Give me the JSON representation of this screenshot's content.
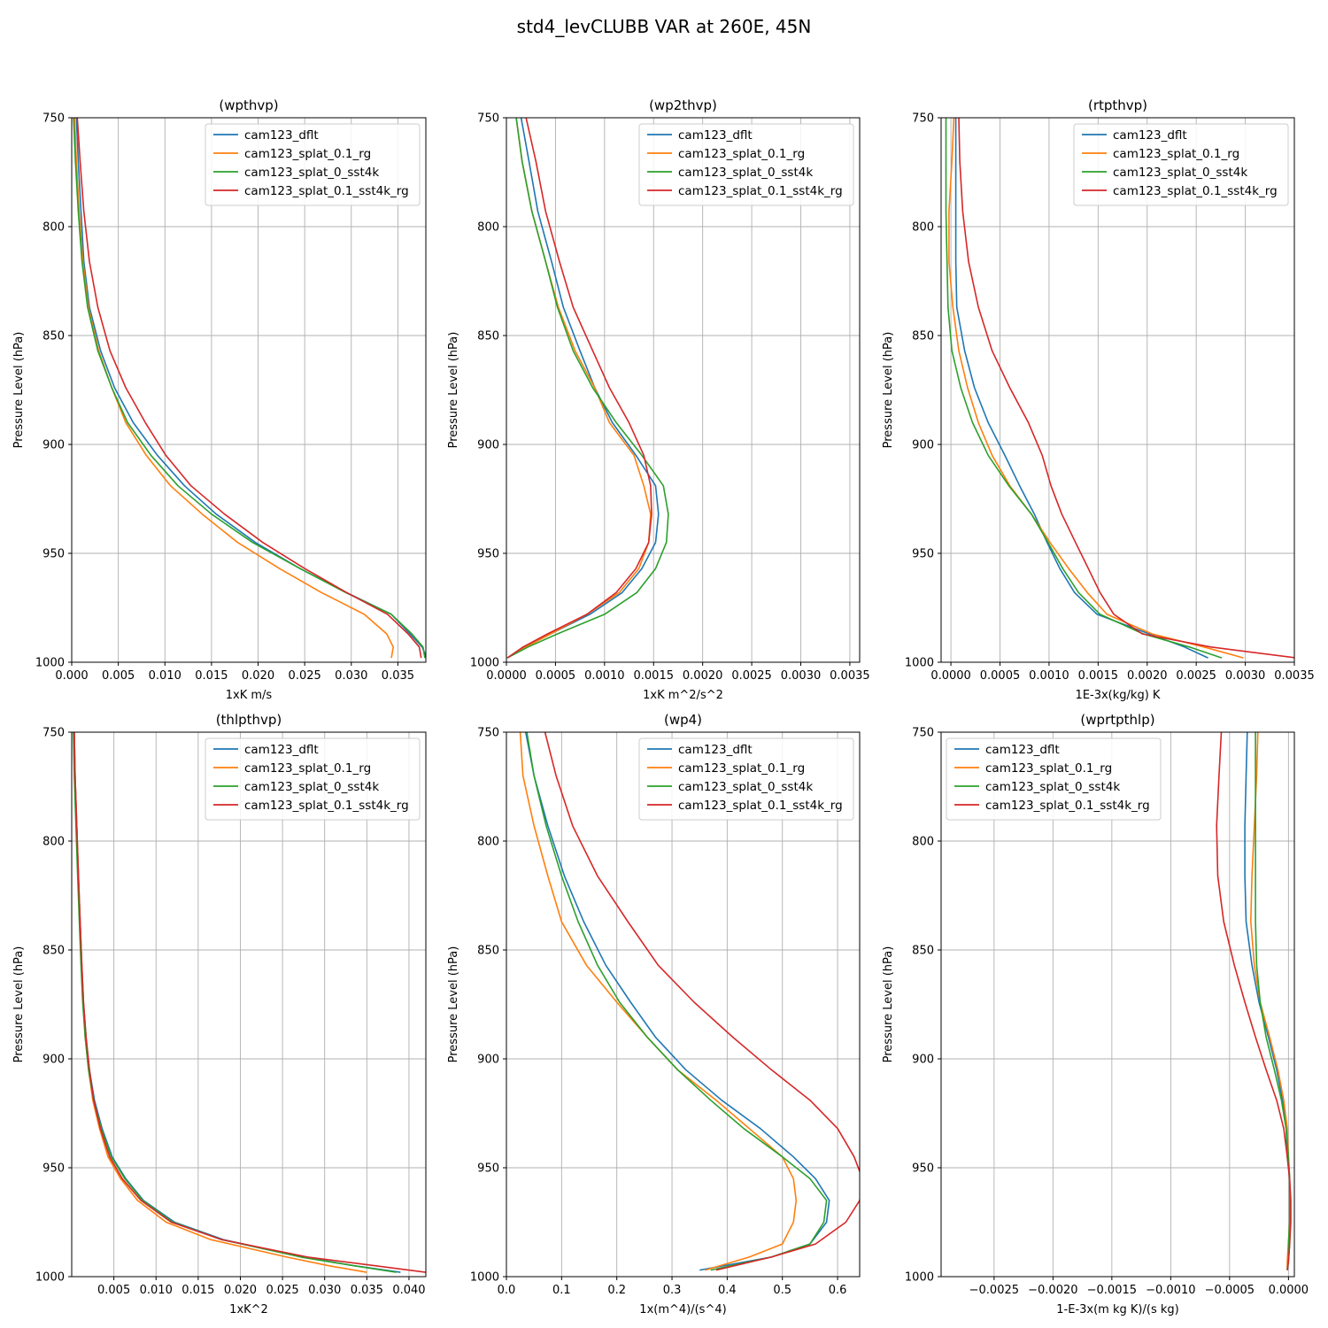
{
  "figure": {
    "suptitle": "std4_levCLUBB VAR at 260E, 45N"
  },
  "series_colors": {
    "cam123_dflt": "#1f77b4",
    "cam123_splat_0.1_rg": "#ff7f0e",
    "cam123_splat_0_sst4k": "#2ca02c",
    "cam123_splat_0.1_sst4k_rg": "#d62728"
  },
  "chart_data": [
    {
      "type": "line",
      "title": "(wpthvp)",
      "xlabel": "1xK m/s",
      "ylabel": "Pressure Level (hPa)",
      "xlim": [
        0,
        0.038
      ],
      "ylim": [
        1000,
        750
      ],
      "xticks": [
        "0.000",
        "0.005",
        "0.010",
        "0.015",
        "0.020",
        "0.025",
        "0.030",
        "0.035"
      ],
      "yticks": [
        "750",
        "800",
        "850",
        "900",
        "950",
        "1000"
      ],
      "grid": true,
      "legend_position": "upper-right",
      "pressure": [
        750,
        770,
        793,
        816,
        837,
        857,
        874,
        890,
        905,
        919,
        932,
        945,
        957,
        968,
        978,
        987,
        993,
        998
      ],
      "series": [
        {
          "name": "cam123_dflt",
          "values": [
            0.0005,
            0.0007,
            0.001,
            0.0013,
            0.0019,
            0.0031,
            0.0046,
            0.0066,
            0.0092,
            0.0121,
            0.0155,
            0.0197,
            0.0245,
            0.0295,
            0.0343,
            0.0363,
            0.0376,
            0.0381
          ]
        },
        {
          "name": "cam123_splat_0.1_rg",
          "values": [
            0.0003,
            0.0005,
            0.0008,
            0.0012,
            0.0018,
            0.0029,
            0.0043,
            0.0058,
            0.008,
            0.0106,
            0.014,
            0.0178,
            0.0223,
            0.0268,
            0.0314,
            0.0338,
            0.0345,
            0.0343
          ]
        },
        {
          "name": "cam123_splat_0_sst4k",
          "values": [
            0.0002,
            0.0004,
            0.0007,
            0.0011,
            0.0017,
            0.0028,
            0.0043,
            0.006,
            0.0085,
            0.0114,
            0.015,
            0.0194,
            0.0245,
            0.0294,
            0.0343,
            0.0365,
            0.0377,
            0.0379
          ]
        },
        {
          "name": "cam123_splat_0.1_sst4k_rg",
          "values": [
            0.0006,
            0.0009,
            0.0013,
            0.0019,
            0.0028,
            0.0041,
            0.0058,
            0.0079,
            0.0101,
            0.0128,
            0.0164,
            0.0205,
            0.025,
            0.0295,
            0.0339,
            0.0361,
            0.0373,
            0.0375
          ]
        }
      ]
    },
    {
      "type": "line",
      "title": "(wp2thvp)",
      "xlabel": "1xK m^2/s^2",
      "ylabel": "Pressure Level (hPa)",
      "xlim": [
        0,
        0.0036
      ],
      "ylim": [
        1000,
        750
      ],
      "xticks": [
        "0.0000",
        "0.0005",
        "0.0010",
        "0.0015",
        "0.0020",
        "0.0025",
        "0.0030",
        "0.0035"
      ],
      "yticks": [
        "750",
        "800",
        "850",
        "900",
        "950",
        "1000"
      ],
      "grid": true,
      "legend_position": "upper-right",
      "pressure": [
        750,
        770,
        793,
        816,
        837,
        857,
        874,
        890,
        905,
        919,
        932,
        945,
        957,
        968,
        978,
        987,
        993,
        998
      ],
      "series": [
        {
          "name": "cam123_dflt",
          "values": [
            0.00015,
            0.00023,
            0.00032,
            0.00046,
            0.00058,
            0.00075,
            0.0009,
            0.00108,
            0.00132,
            0.00152,
            0.00155,
            0.00152,
            0.00138,
            0.00118,
            0.00085,
            0.00045,
            0.00018,
            1e-05
          ]
        },
        {
          "name": "cam123_splat_0.1_rg",
          "values": [
            0.0001,
            0.00016,
            0.00026,
            0.0004,
            0.00053,
            0.0007,
            0.0009,
            0.00105,
            0.0013,
            0.0014,
            0.00147,
            0.00145,
            0.00135,
            0.00115,
            0.00082,
            0.00045,
            0.0002,
            1e-05
          ]
        },
        {
          "name": "cam123_splat_0_sst4k",
          "values": [
            0.0001,
            0.00016,
            0.00026,
            0.0004,
            0.00052,
            0.00068,
            0.00088,
            0.00112,
            0.00138,
            0.0016,
            0.00165,
            0.00163,
            0.00152,
            0.00133,
            0.001,
            0.00052,
            0.00022,
            1e-05
          ]
        },
        {
          "name": "cam123_splat_0.1_sst4k_rg",
          "values": [
            0.0002,
            0.0003,
            0.0004,
            0.00054,
            0.00068,
            0.00088,
            0.00105,
            0.00125,
            0.0014,
            0.00147,
            0.00148,
            0.00145,
            0.00132,
            0.00112,
            0.00082,
            0.00042,
            0.00017,
            1e-05
          ]
        }
      ]
    },
    {
      "type": "line",
      "title": "(rtpthvp)",
      "xlabel": "1E-3x(kg/kg) K",
      "ylabel": "Pressure Level (hPa)",
      "xlim": [
        -0.0001,
        0.0035
      ],
      "ylim": [
        1000,
        750
      ],
      "xticks": [
        "0.0000",
        "0.0005",
        "0.0010",
        "0.0015",
        "0.0020",
        "0.0025",
        "0.0030",
        "0.0035"
      ],
      "yticks": [
        "750",
        "800",
        "850",
        "900",
        "950",
        "1000"
      ],
      "grid": true,
      "legend_position": "upper-right",
      "pressure": [
        750,
        770,
        793,
        816,
        837,
        857,
        874,
        890,
        905,
        919,
        932,
        945,
        957,
        968,
        978,
        987,
        993,
        998
      ],
      "series": [
        {
          "name": "cam123_dflt",
          "values": [
            5e-05,
            5e-05,
            5e-05,
            5e-05,
            6e-05,
            0.00014,
            0.00024,
            0.00038,
            0.00055,
            0.0007,
            0.00085,
            0.00098,
            0.00111,
            0.00126,
            0.00149,
            0.00202,
            0.00238,
            0.00262
          ]
        },
        {
          "name": "cam123_splat_0.1_rg",
          "values": [
            3e-05,
            1e-05,
            -2e-05,
            -2e-05,
            2e-05,
            8e-05,
            0.00017,
            0.00028,
            0.00042,
            0.0006,
            0.00082,
            0.00101,
            0.0012,
            0.00139,
            0.00159,
            0.00205,
            0.00258,
            0.00298
          ]
        },
        {
          "name": "cam123_splat_0_sst4k",
          "values": [
            -5e-05,
            -5e-05,
            -5e-05,
            -4e-05,
            -3e-05,
            1e-05,
            0.0001,
            0.00022,
            0.00038,
            0.00059,
            0.00082,
            0.00099,
            0.00114,
            0.0013,
            0.00152,
            0.00196,
            0.00243,
            0.00276
          ]
        },
        {
          "name": "cam123_splat_0.1_sst4k_rg",
          "values": [
            8e-05,
            9e-05,
            0.00012,
            0.00018,
            0.00028,
            0.00042,
            0.0006,
            0.00079,
            0.00093,
            0.00102,
            0.00113,
            0.00127,
            0.0014,
            0.00152,
            0.00166,
            0.00195,
            0.00265,
            0.00352
          ]
        }
      ]
    },
    {
      "type": "line",
      "title": "(thlpthvp)",
      "xlabel": "1xK^2",
      "ylabel": "Pressure Level (hPa)",
      "xlim": [
        0,
        0.042
      ],
      "ylim": [
        1000,
        750
      ],
      "xticks": [
        "0.005",
        "0.010",
        "0.015",
        "0.020",
        "0.025",
        "0.030",
        "0.035",
        "0.040"
      ],
      "yticks": [
        "750",
        "800",
        "850",
        "900",
        "950",
        "1000"
      ],
      "grid": true,
      "legend_position": "upper-right",
      "pressure": [
        750,
        770,
        793,
        816,
        837,
        857,
        874,
        890,
        905,
        919,
        932,
        945,
        955,
        965,
        975,
        983,
        991,
        995,
        998
      ],
      "series": [
        {
          "name": "cam123_dflt",
          "values": [
            0.0003,
            0.0004,
            0.0006,
            0.0008,
            0.001,
            0.0012,
            0.0014,
            0.0017,
            0.0021,
            0.0027,
            0.0036,
            0.0048,
            0.0064,
            0.0085,
            0.0122,
            0.018,
            0.0275,
            0.0335,
            0.039
          ]
        },
        {
          "name": "cam123_splat_0.1_rg",
          "values": [
            0.0003,
            0.0004,
            0.0006,
            0.0008,
            0.001,
            0.0012,
            0.0014,
            0.0016,
            0.002,
            0.0025,
            0.0033,
            0.0043,
            0.0058,
            0.0078,
            0.0112,
            0.0165,
            0.0255,
            0.0305,
            0.035
          ]
        },
        {
          "name": "cam123_splat_0_sst4k",
          "values": [
            0.0002,
            0.0003,
            0.0005,
            0.0007,
            0.0009,
            0.0011,
            0.0013,
            0.0016,
            0.002,
            0.0026,
            0.0035,
            0.0047,
            0.0063,
            0.0084,
            0.012,
            0.0178,
            0.0272,
            0.0335,
            0.0385
          ]
        },
        {
          "name": "cam123_splat_0.1_sst4k_rg",
          "values": [
            0.0003,
            0.0004,
            0.0006,
            0.0008,
            0.001,
            0.0012,
            0.0014,
            0.0017,
            0.0021,
            0.0026,
            0.0034,
            0.0045,
            0.006,
            0.0082,
            0.0118,
            0.0178,
            0.028,
            0.036,
            0.042
          ]
        }
      ]
    },
    {
      "type": "line",
      "title": "(wp4)",
      "xlabel": "1x(m^4)/(s^4)",
      "ylabel": "Pressure Level (hPa)",
      "xlim": [
        0,
        0.64
      ],
      "ylim": [
        1000,
        750
      ],
      "xticks": [
        "0.0",
        "0.1",
        "0.2",
        "0.3",
        "0.4",
        "0.5",
        "0.6"
      ],
      "yticks": [
        "750",
        "800",
        "850",
        "900",
        "950",
        "1000"
      ],
      "grid": true,
      "legend_position": "upper-right",
      "pressure": [
        750,
        770,
        793,
        816,
        837,
        857,
        874,
        890,
        905,
        919,
        932,
        945,
        955,
        965,
        975,
        985,
        991,
        997
      ],
      "series": [
        {
          "name": "cam123_dflt",
          "values": [
            0.035,
            0.05,
            0.075,
            0.105,
            0.14,
            0.18,
            0.225,
            0.27,
            0.325,
            0.39,
            0.46,
            0.52,
            0.56,
            0.585,
            0.58,
            0.55,
            0.48,
            0.35
          ]
        },
        {
          "name": "cam123_splat_0.1_rg",
          "values": [
            0.025,
            0.03,
            0.05,
            0.075,
            0.1,
            0.145,
            0.2,
            0.255,
            0.31,
            0.38,
            0.44,
            0.5,
            0.52,
            0.525,
            0.52,
            0.5,
            0.44,
            0.36
          ]
        },
        {
          "name": "cam123_splat_0_sst4k",
          "values": [
            0.037,
            0.05,
            0.072,
            0.1,
            0.13,
            0.165,
            0.205,
            0.255,
            0.31,
            0.37,
            0.43,
            0.5,
            0.55,
            0.58,
            0.575,
            0.55,
            0.48,
            0.37
          ]
        },
        {
          "name": "cam123_splat_0.1_sst4k_rg",
          "values": [
            0.07,
            0.09,
            0.12,
            0.165,
            0.22,
            0.275,
            0.34,
            0.41,
            0.48,
            0.55,
            0.6,
            0.63,
            0.645,
            0.64,
            0.615,
            0.56,
            0.48,
            0.38
          ]
        }
      ]
    },
    {
      "type": "line",
      "title": "(wprtpthlp)",
      "xlabel": "1-E-3x(m kg K)/(s kg)",
      "ylabel": "Pressure Level (hPa)",
      "xlim": [
        -0.00295,
        5e-05
      ],
      "ylim": [
        1000,
        750
      ],
      "xticks": [
        "−0.0025",
        "−0.0020",
        "−0.0015",
        "−0.0010",
        "−0.0005",
        "0.0000"
      ],
      "yticks": [
        "750",
        "800",
        "850",
        "900",
        "950",
        "1000"
      ],
      "grid": true,
      "legend_position": "upper-left",
      "pressure": [
        750,
        770,
        793,
        816,
        837,
        857,
        874,
        890,
        905,
        919,
        932,
        945,
        955,
        965,
        975,
        985,
        993,
        997
      ],
      "series": [
        {
          "name": "cam123_dflt",
          "values": [
            -0.00035,
            -0.00036,
            -0.00037,
            -0.00037,
            -0.00036,
            -0.00031,
            -0.00025,
            -0.00017,
            -0.0001,
            -5e-05,
            -2e-05,
            -1e-05,
            1e-05,
            1e-05,
            1e-05,
            1e-05,
            0.0,
            -1e-05
          ]
        },
        {
          "name": "cam123_splat_0.1_rg",
          "values": [
            -0.00026,
            -0.00027,
            -0.00029,
            -0.00031,
            -0.00032,
            -0.00029,
            -0.00024,
            -0.00016,
            -9e-05,
            -4e-05,
            -1e-05,
            0.0,
            1e-05,
            1e-05,
            1e-05,
            0.0,
            -1e-05,
            -1e-05
          ]
        },
        {
          "name": "cam123_splat_0_sst4k",
          "values": [
            -0.00028,
            -0.00028,
            -0.00028,
            -0.00028,
            -0.00028,
            -0.00027,
            -0.00024,
            -0.00019,
            -0.00012,
            -6e-05,
            -2e-05,
            0.0,
            1e-05,
            1e-05,
            1e-05,
            0.0,
            0.0,
            -1e-05
          ]
        },
        {
          "name": "cam123_splat_0.1_sst4k_rg",
          "values": [
            -0.00057,
            -0.00059,
            -0.00061,
            -0.0006,
            -0.00055,
            -0.00046,
            -0.00037,
            -0.00028,
            -0.00019,
            -0.0001,
            -4e-05,
            -1e-05,
            1e-05,
            2e-05,
            2e-05,
            1e-05,
            0.0,
            -1e-05
          ]
        }
      ]
    }
  ]
}
